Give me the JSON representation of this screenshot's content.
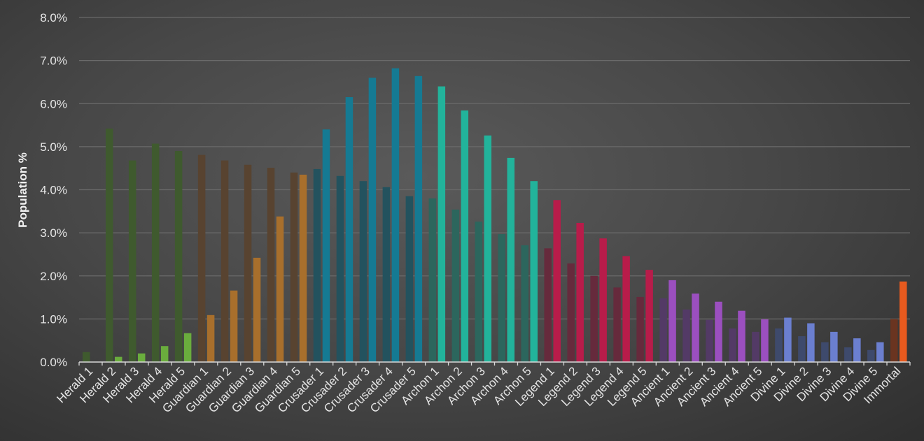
{
  "chart_data": {
    "type": "bar",
    "title": "",
    "xlabel": "",
    "ylabel": "Population %",
    "ylim": [
      0,
      8
    ],
    "yticks": [
      "0.0%",
      "1.0%",
      "2.0%",
      "3.0%",
      "4.0%",
      "5.0%",
      "6.0%",
      "7.0%",
      "8.0%"
    ],
    "grid": true,
    "legend": "none",
    "categories": [
      "Herald 1",
      "Herald 2",
      "Herald 3",
      "Herald 4",
      "Herald 5",
      "Guardian 1",
      "Guardian 2",
      "Guardian 3",
      "Guardian 4",
      "Guardian 5",
      "Crusader 1",
      "Crusader 2",
      "Crusader 3",
      "Crusader 4",
      "Crusader 5",
      "Archon 1",
      "Archon 2",
      "Archon 3",
      "Archon 4",
      "Archon 5",
      "Legend 1",
      "Legend 2",
      "Legend 3",
      "Legend 4",
      "Legend 5",
      "Ancient 1",
      "Ancient 2",
      "Ancient 3",
      "Ancient 4",
      "Ancient 5",
      "Divine 1",
      "Divine 2",
      "Divine 3",
      "Divine 4",
      "Divine 5",
      "Immortal"
    ],
    "series": [
      {
        "style": "dim",
        "values": [
          0.23,
          5.42,
          4.68,
          5.07,
          4.9,
          4.81,
          4.68,
          4.58,
          4.51,
          4.4,
          4.48,
          4.32,
          4.2,
          4.06,
          3.85,
          3.8,
          3.54,
          3.26,
          2.97,
          2.71,
          2.64,
          2.29,
          2.0,
          1.73,
          1.51,
          1.48,
          1.22,
          0.98,
          0.78,
          0.7,
          0.78,
          0.6,
          0.46,
          0.34,
          0.28,
          1.0
        ]
      },
      {
        "style": "bright",
        "values": [
          0.0,
          0.12,
          0.2,
          0.37,
          0.67,
          1.09,
          1.66,
          2.42,
          3.38,
          4.35,
          5.4,
          6.15,
          6.6,
          6.82,
          6.64,
          6.4,
          5.84,
          5.26,
          4.74,
          4.2,
          3.76,
          3.23,
          2.87,
          2.46,
          2.14,
          1.9,
          1.59,
          1.4,
          1.19,
          0.99,
          1.03,
          0.9,
          0.7,
          0.55,
          0.46,
          1.87
        ]
      }
    ],
    "tier_colors": {
      "Herald": {
        "dim": "#3f5a2e",
        "bright": "#6aad3d"
      },
      "Guardian": {
        "dim": "#584330",
        "bright": "#a86f2c"
      },
      "Crusader": {
        "dim": "#23525e",
        "bright": "#157a93"
      },
      "Archon": {
        "dim": "#2c665d",
        "bright": "#22b39b"
      },
      "Legend": {
        "dim": "#662a3c",
        "bright": "#b81c4a"
      },
      "Ancient": {
        "dim": "#533a66",
        "bright": "#9b4fbf"
      },
      "Divine": {
        "dim": "#3e4a6c",
        "bright": "#6b7fd0"
      },
      "Immortal": {
        "dim": "#6a3420",
        "bright": "#e85a1e"
      }
    }
  }
}
